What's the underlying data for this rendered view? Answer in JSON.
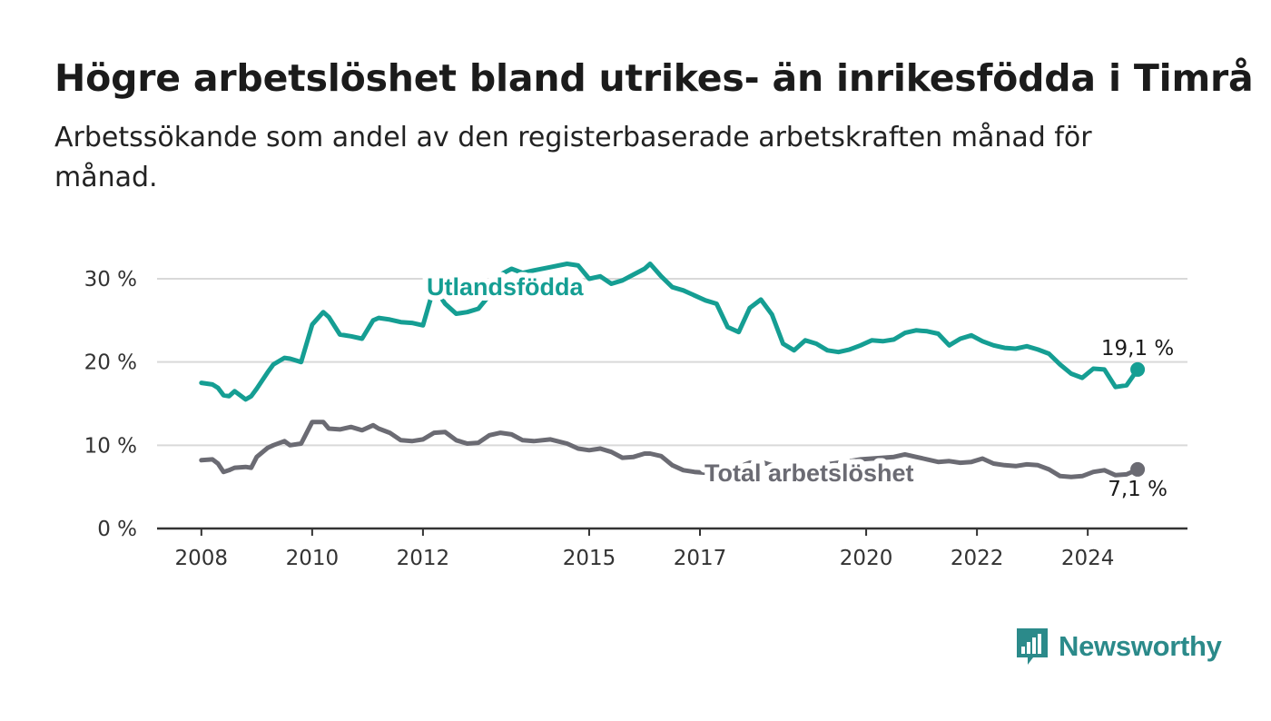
{
  "header": {
    "title": "Högre arbetslöshet bland utrikes- än inrikesfödda i Timrå",
    "subtitle": "Arbetssökande som andel av den registerbaserade arbetskraften månad för månad."
  },
  "brand": {
    "name": "Newsworthy",
    "icon": "newsworthy-bar-chart-icon",
    "color": "#2b8a8a"
  },
  "chart_data": {
    "type": "line",
    "ylim": [
      0,
      30
    ],
    "yticks": [
      0,
      10,
      20,
      30
    ],
    "ytick_labels": [
      "0 %",
      "10 %",
      "20 %",
      "30 %"
    ],
    "xlim": [
      2007.2,
      2025.8
    ],
    "xticks": [
      2008,
      2010,
      2012,
      2015,
      2017,
      2020,
      2022,
      2024
    ],
    "xtick_labels": [
      "2008",
      "2010",
      "2012",
      "2015",
      "2017",
      "2020",
      "2022",
      "2024"
    ],
    "grid": true,
    "series": [
      {
        "name": "Utlandsfödda",
        "color": "#159e93",
        "end_label": "19,1 %",
        "x": [
          2008.0,
          2008.2,
          2008.3,
          2008.4,
          2008.5,
          2008.6,
          2008.8,
          2008.9,
          2009.0,
          2009.2,
          2009.3,
          2009.5,
          2009.6,
          2009.8,
          2010.0,
          2010.2,
          2010.3,
          2010.5,
          2010.7,
          2010.9,
          2011.1,
          2011.2,
          2011.4,
          2011.6,
          2011.8,
          2012.0,
          2012.2,
          2012.4,
          2012.6,
          2012.8,
          2013.0,
          2013.2,
          2013.4,
          2013.6,
          2013.8,
          2014.0,
          2014.3,
          2014.6,
          2014.8,
          2015.0,
          2015.2,
          2015.4,
          2015.6,
          2015.8,
          2016.0,
          2016.1,
          2016.3,
          2016.5,
          2016.7,
          2016.9,
          2017.1,
          2017.3,
          2017.5,
          2017.7,
          2017.9,
          2018.1,
          2018.3,
          2018.5,
          2018.7,
          2018.9,
          2019.1,
          2019.3,
          2019.5,
          2019.7,
          2019.9,
          2020.1,
          2020.3,
          2020.5,
          2020.7,
          2020.9,
          2021.1,
          2021.3,
          2021.5,
          2021.7,
          2021.9,
          2022.1,
          2022.3,
          2022.5,
          2022.7,
          2022.9,
          2023.1,
          2023.3,
          2023.5,
          2023.7,
          2023.9,
          2024.1,
          2024.3,
          2024.5,
          2024.7,
          2024.9
        ],
        "values": [
          17.5,
          17.3,
          16.9,
          16.0,
          15.9,
          16.5,
          15.5,
          15.9,
          16.8,
          18.8,
          19.7,
          20.5,
          20.4,
          20.0,
          24.5,
          26.0,
          25.4,
          23.3,
          23.1,
          22.8,
          25.0,
          25.3,
          25.1,
          24.8,
          24.7,
          24.4,
          29.0,
          27.0,
          25.8,
          26.0,
          26.4,
          28.0,
          30.5,
          31.2,
          30.7,
          31.0,
          31.4,
          31.8,
          31.6,
          30.0,
          30.3,
          29.4,
          29.8,
          30.5,
          31.2,
          31.8,
          30.3,
          29.0,
          28.6,
          28.0,
          27.4,
          27.0,
          24.2,
          23.6,
          26.5,
          27.5,
          25.7,
          22.2,
          21.4,
          22.6,
          22.2,
          21.4,
          21.2,
          21.5,
          22.0,
          22.6,
          22.5,
          22.7,
          23.5,
          23.8,
          23.7,
          23.4,
          22.0,
          22.8,
          23.2,
          22.5,
          22.0,
          21.7,
          21.6,
          21.9,
          21.5,
          21.0,
          19.7,
          18.6,
          18.1,
          19.2,
          19.1,
          17.0,
          17.2,
          19.1
        ]
      },
      {
        "name": "Total arbetslöshet",
        "color": "#6b6b73",
        "end_label": "7,1 %",
        "x": [
          2008.0,
          2008.2,
          2008.3,
          2008.4,
          2008.5,
          2008.6,
          2008.8,
          2008.9,
          2009.0,
          2009.2,
          2009.3,
          2009.5,
          2009.6,
          2009.8,
          2010.0,
          2010.2,
          2010.3,
          2010.5,
          2010.7,
          2010.9,
          2011.1,
          2011.2,
          2011.4,
          2011.6,
          2011.8,
          2012.0,
          2012.2,
          2012.4,
          2012.6,
          2012.8,
          2013.0,
          2013.2,
          2013.4,
          2013.6,
          2013.8,
          2014.0,
          2014.3,
          2014.6,
          2014.8,
          2015.0,
          2015.2,
          2015.4,
          2015.6,
          2015.8,
          2016.0,
          2016.1,
          2016.3,
          2016.5,
          2016.7,
          2016.9,
          2017.1,
          2017.3,
          2017.5,
          2017.7,
          2017.9,
          2018.1,
          2018.3,
          2018.5,
          2018.7,
          2018.9,
          2019.1,
          2019.3,
          2019.5,
          2019.7,
          2019.9,
          2020.1,
          2020.3,
          2020.5,
          2020.7,
          2020.9,
          2021.1,
          2021.3,
          2021.5,
          2021.7,
          2021.9,
          2022.1,
          2022.3,
          2022.5,
          2022.7,
          2022.9,
          2023.1,
          2023.3,
          2023.5,
          2023.7,
          2023.9,
          2024.1,
          2024.3,
          2024.5,
          2024.7,
          2024.9
        ],
        "values": [
          8.2,
          8.3,
          7.8,
          6.8,
          7.0,
          7.3,
          7.4,
          7.3,
          8.6,
          9.7,
          10.0,
          10.5,
          10.0,
          10.2,
          12.8,
          12.8,
          12.0,
          11.9,
          12.2,
          11.8,
          12.4,
          12.0,
          11.5,
          10.6,
          10.5,
          10.7,
          11.5,
          11.6,
          10.6,
          10.2,
          10.3,
          11.2,
          11.5,
          11.3,
          10.6,
          10.5,
          10.7,
          10.2,
          9.6,
          9.4,
          9.6,
          9.2,
          8.5,
          8.6,
          9.0,
          9.0,
          8.7,
          7.6,
          7.0,
          6.8,
          6.7,
          6.9,
          7.1,
          7.4,
          7.9,
          8.0,
          7.6,
          7.4,
          7.0,
          6.9,
          7.4,
          7.7,
          7.9,
          8.1,
          8.3,
          8.4,
          8.5,
          8.6,
          8.9,
          8.6,
          8.3,
          8.0,
          8.1,
          7.9,
          8.0,
          8.4,
          7.8,
          7.6,
          7.5,
          7.7,
          7.6,
          7.1,
          6.3,
          6.2,
          6.3,
          6.8,
          7.0,
          6.4,
          6.5,
          7.1
        ]
      }
    ]
  }
}
